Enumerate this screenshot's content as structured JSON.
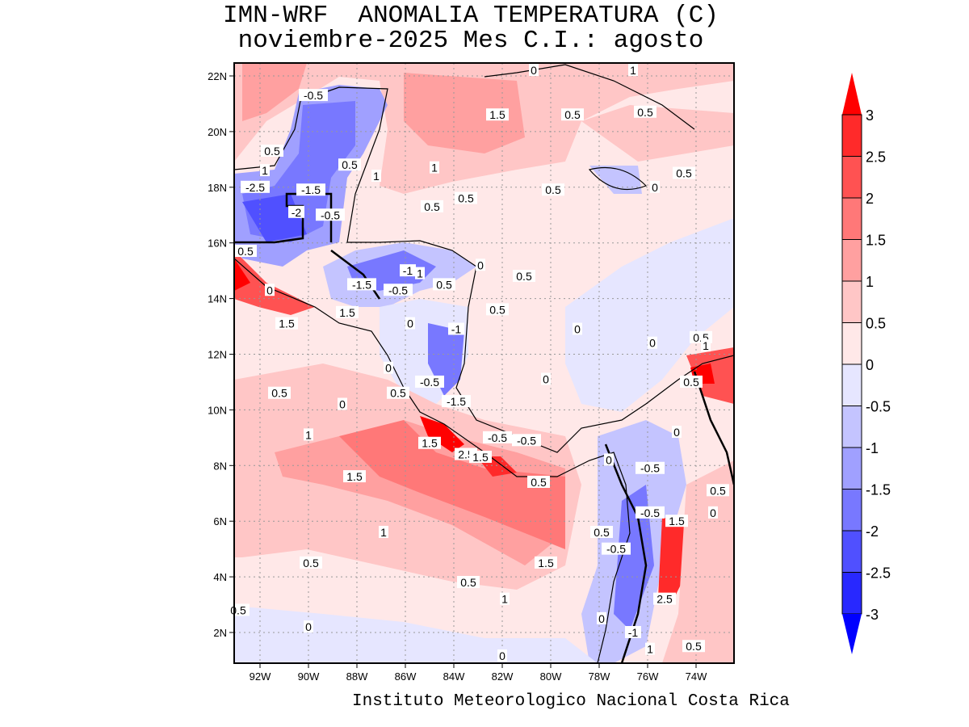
{
  "title": {
    "line1": "IMN-WRF  ANOMALIA TEMPERATURA (C)",
    "line2": "noviembre-2025 Mes C.I.: agosto"
  },
  "credit": "Instituto Meteorologico Nacional Costa Rica",
  "map": {
    "lon_ticks": [
      "92W",
      "90W",
      "88W",
      "86W",
      "84W",
      "82W",
      "80W",
      "78W",
      "76W",
      "74W"
    ],
    "lat_ticks": [
      "22N",
      "20N",
      "18N",
      "16N",
      "14N",
      "12N",
      "10N",
      "8N",
      "6N",
      "4N",
      "2N"
    ],
    "grid": "dotted",
    "contour_labels": [
      {
        "t": "-0.5",
        "lon": -89.8,
        "lat": 21.3
      },
      {
        "t": "1.5",
        "lon": -82.2,
        "lat": 20.6
      },
      {
        "t": "0",
        "lon": -80.7,
        "lat": 22.2
      },
      {
        "t": "1",
        "lon": -76.6,
        "lat": 22.2
      },
      {
        "t": "0.5",
        "lon": -76.1,
        "lat": 20.7
      },
      {
        "t": "0.5",
        "lon": -79.1,
        "lat": 20.6
      },
      {
        "t": "0.5",
        "lon": -91.5,
        "lat": 19.3
      },
      {
        "t": "1",
        "lon": -91.8,
        "lat": 18.6
      },
      {
        "t": "0.5",
        "lon": -88.3,
        "lat": 18.8
      },
      {
        "t": "1",
        "lon": -87.2,
        "lat": 18.4
      },
      {
        "t": "1",
        "lon": -84.8,
        "lat": 18.7
      },
      {
        "t": "-2.5",
        "lon": -92.2,
        "lat": 18.0
      },
      {
        "t": "-1.5",
        "lon": -89.9,
        "lat": 17.9
      },
      {
        "t": "-2",
        "lon": -90.5,
        "lat": 17.1
      },
      {
        "t": "-0.5",
        "lon": -89.1,
        "lat": 17.0
      },
      {
        "t": "0.5",
        "lon": -84.9,
        "lat": 17.3
      },
      {
        "t": "0.5",
        "lon": -83.5,
        "lat": 17.6
      },
      {
        "t": "0.5",
        "lon": -79.9,
        "lat": 17.9
      },
      {
        "t": "0",
        "lon": -75.7,
        "lat": 18.0
      },
      {
        "t": "0.5",
        "lon": -74.5,
        "lat": 18.5
      },
      {
        "t": "0.5",
        "lon": -92.6,
        "lat": 15.7
      },
      {
        "t": "-1",
        "lon": -85.9,
        "lat": 15.0
      },
      {
        "t": "1",
        "lon": -85.4,
        "lat": 14.9
      },
      {
        "t": "-1.5",
        "lon": -87.8,
        "lat": 14.5
      },
      {
        "t": "-0.5",
        "lon": -86.3,
        "lat": 14.3
      },
      {
        "t": "0.5",
        "lon": -84.4,
        "lat": 14.5
      },
      {
        "t": "0",
        "lon": -82.9,
        "lat": 15.2
      },
      {
        "t": "0.5",
        "lon": -81.1,
        "lat": 14.8
      },
      {
        "t": "0",
        "lon": -91.6,
        "lat": 14.3
      },
      {
        "t": "0.5",
        "lon": -82.2,
        "lat": 13.6
      },
      {
        "t": "1.5",
        "lon": -90.9,
        "lat": 13.1
      },
      {
        "t": "1.5",
        "lon": -88.4,
        "lat": 13.5
      },
      {
        "t": "0",
        "lon": -85.8,
        "lat": 13.1
      },
      {
        "t": "-1",
        "lon": -83.9,
        "lat": 12.9
      },
      {
        "t": "0",
        "lon": -78.9,
        "lat": 12.9
      },
      {
        "t": "0",
        "lon": -75.8,
        "lat": 12.4
      },
      {
        "t": "0.5",
        "lon": -73.8,
        "lat": 12.6
      },
      {
        "t": "1",
        "lon": -73.6,
        "lat": 12.3
      },
      {
        "t": "0",
        "lon": -86.7,
        "lat": 11.5
      },
      {
        "t": "0",
        "lon": -80.2,
        "lat": 11.1
      },
      {
        "t": "-0.5",
        "lon": -85.0,
        "lat": 11.0
      },
      {
        "t": "0.5",
        "lon": -74.2,
        "lat": 11.0
      },
      {
        "t": "0.5",
        "lon": -91.2,
        "lat": 10.6
      },
      {
        "t": "0.5",
        "lon": -86.3,
        "lat": 10.6
      },
      {
        "t": "0",
        "lon": -88.6,
        "lat": 10.2
      },
      {
        "t": "-1.5",
        "lon": -83.9,
        "lat": 10.3
      },
      {
        "t": "1",
        "lon": -90.0,
        "lat": 9.1
      },
      {
        "t": "1.5",
        "lon": -85.0,
        "lat": 8.8
      },
      {
        "t": "-0.5",
        "lon": -82.2,
        "lat": 9.0
      },
      {
        "t": "-0.5",
        "lon": -81.0,
        "lat": 8.9
      },
      {
        "t": "0",
        "lon": -74.8,
        "lat": 9.2
      },
      {
        "t": "2.5",
        "lon": -83.5,
        "lat": 8.4
      },
      {
        "t": "1.5",
        "lon": -82.9,
        "lat": 8.3
      },
      {
        "t": "1.5",
        "lon": -88.1,
        "lat": 7.6
      },
      {
        "t": "0.5",
        "lon": -80.5,
        "lat": 7.4
      },
      {
        "t": "0",
        "lon": -77.6,
        "lat": 8.2
      },
      {
        "t": "-0.5",
        "lon": -75.9,
        "lat": 7.9
      },
      {
        "t": "0.5",
        "lon": -73.1,
        "lat": 7.1
      },
      {
        "t": "-0.5",
        "lon": -75.9,
        "lat": 6.3
      },
      {
        "t": "1.5",
        "lon": -74.8,
        "lat": 6.0
      },
      {
        "t": "0",
        "lon": -73.3,
        "lat": 6.3
      },
      {
        "t": "1",
        "lon": -86.9,
        "lat": 5.6
      },
      {
        "t": "0.5",
        "lon": -77.9,
        "lat": 5.6
      },
      {
        "t": "-0.5",
        "lon": -77.3,
        "lat": 5.0
      },
      {
        "t": "0.5",
        "lon": -89.9,
        "lat": 4.5
      },
      {
        "t": "1.5",
        "lon": -80.2,
        "lat": 4.5
      },
      {
        "t": "0.5",
        "lon": -83.4,
        "lat": 3.8
      },
      {
        "t": "1",
        "lon": -81.9,
        "lat": 3.2
      },
      {
        "t": "2.5",
        "lon": -75.3,
        "lat": 3.2
      },
      {
        "t": "0.5",
        "lon": -92.9,
        "lat": 2.8
      },
      {
        "t": "0",
        "lon": -77.9,
        "lat": 2.5
      },
      {
        "t": "-1",
        "lon": -76.6,
        "lat": 2.0
      },
      {
        "t": "0",
        "lon": -90.0,
        "lat": 2.2
      },
      {
        "t": "1",
        "lon": -75.9,
        "lat": 1.4
      },
      {
        "t": "0.5",
        "lon": -74.1,
        "lat": 1.5
      },
      {
        "t": "0",
        "lon": -82.0,
        "lat": 1.0
      }
    ]
  },
  "colorbar": {
    "labels": [
      "3",
      "2.5",
      "2",
      "1.5",
      "1",
      "0.5",
      "0",
      "-0.5",
      "-1",
      "-1.5",
      "-2",
      "-2.5",
      "-3"
    ],
    "colors": [
      "#ff0000",
      "#ff2a2a",
      "#ff5252",
      "#ff7878",
      "#ffa0a0",
      "#ffc6c6",
      "#ffe8e8",
      "#e6e6ff",
      "#c4c4ff",
      "#a0a0ff",
      "#7878ff",
      "#5050ff",
      "#2828ff",
      "#0000ff"
    ]
  }
}
